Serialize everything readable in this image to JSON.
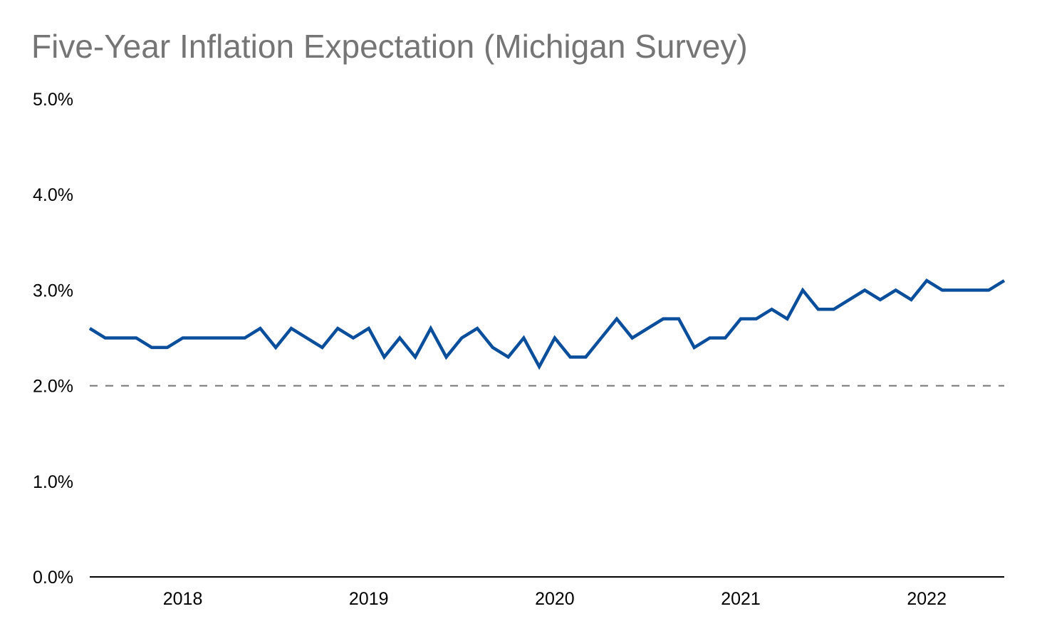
{
  "chart_data": {
    "type": "line",
    "title": "Five-Year Inflation Expectation (Michigan Survey)",
    "xlabel": "",
    "ylabel": "",
    "ylim": [
      0,
      5
    ],
    "y_ticks": [
      "0.0%",
      "1.0%",
      "2.0%",
      "3.0%",
      "4.0%",
      "5.0%"
    ],
    "y_tick_values": [
      0,
      1,
      2,
      3,
      4,
      5
    ],
    "x_ticks": [
      "2018",
      "2019",
      "2020",
      "2021",
      "2022"
    ],
    "x_range": [
      "2017-07",
      "2022-06"
    ],
    "grid": false,
    "reference_line": {
      "y": 2.0,
      "style": "dashed",
      "color": "#757575"
    },
    "series": [
      {
        "color": "#0b4f9c",
        "x": [
          "2017-07",
          "2017-08",
          "2017-09",
          "2017-10",
          "2017-11",
          "2017-12",
          "2018-01",
          "2018-02",
          "2018-03",
          "2018-04",
          "2018-05",
          "2018-06",
          "2018-07",
          "2018-08",
          "2018-09",
          "2018-10",
          "2018-11",
          "2018-12",
          "2019-01",
          "2019-02",
          "2019-03",
          "2019-04",
          "2019-05",
          "2019-06",
          "2019-07",
          "2019-08",
          "2019-09",
          "2019-10",
          "2019-11",
          "2019-12",
          "2020-01",
          "2020-02",
          "2020-03",
          "2020-04",
          "2020-05",
          "2020-06",
          "2020-07",
          "2020-08",
          "2020-09",
          "2020-10",
          "2020-11",
          "2020-12",
          "2021-01",
          "2021-02",
          "2021-03",
          "2021-04",
          "2021-05",
          "2021-06",
          "2021-07",
          "2021-08",
          "2021-09",
          "2021-10",
          "2021-11",
          "2021-12",
          "2022-01",
          "2022-02",
          "2022-03",
          "2022-04",
          "2022-05",
          "2022-06"
        ],
        "values": [
          2.6,
          2.5,
          2.5,
          2.5,
          2.4,
          2.4,
          2.5,
          2.5,
          2.5,
          2.5,
          2.5,
          2.6,
          2.4,
          2.6,
          2.5,
          2.4,
          2.6,
          2.5,
          2.6,
          2.3,
          2.5,
          2.3,
          2.6,
          2.3,
          2.5,
          2.6,
          2.4,
          2.3,
          2.5,
          2.2,
          2.5,
          2.3,
          2.3,
          2.5,
          2.7,
          2.5,
          2.6,
          2.7,
          2.7,
          2.4,
          2.5,
          2.5,
          2.7,
          2.7,
          2.8,
          2.7,
          3.0,
          2.8,
          2.8,
          2.9,
          3.0,
          2.9,
          3.0,
          2.9,
          3.1,
          3.0,
          3.0,
          3.0,
          3.0,
          3.1
        ]
      }
    ]
  }
}
